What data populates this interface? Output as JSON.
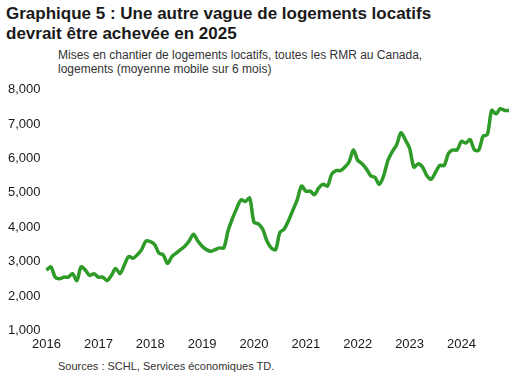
{
  "chart_data": {
    "type": "line",
    "title": "Graphique 5 : Une autre vague de logements locatifs devrait être achevée en 2025",
    "subtitle": "Mises en chantier de logements locatifs, toutes les RMR au Canada, logements (moyenne mobile sur 6 mois)",
    "source": "Sources : SCHL, Services économiques TD.",
    "categories": [
      "2016",
      null,
      null,
      null,
      null,
      null,
      null,
      null,
      null,
      null,
      null,
      null,
      "2017",
      null,
      null,
      null,
      null,
      null,
      null,
      null,
      null,
      null,
      null,
      null,
      "2018",
      null,
      null,
      null,
      null,
      null,
      null,
      null,
      null,
      null,
      null,
      null,
      "2019",
      null,
      null,
      null,
      null,
      null,
      null,
      null,
      null,
      null,
      null,
      null,
      "2020",
      null,
      null,
      null,
      null,
      null,
      null,
      null,
      null,
      null,
      null,
      null,
      "2021",
      null,
      null,
      null,
      null,
      null,
      null,
      null,
      null,
      null,
      null,
      null,
      "2022",
      null,
      null,
      null,
      null,
      null,
      null,
      null,
      null,
      null,
      null,
      null,
      "2023",
      null,
      null,
      null,
      null,
      null,
      null,
      null,
      null,
      null,
      null,
      null,
      "2024",
      null,
      null,
      null,
      null,
      null,
      null,
      null,
      null,
      null,
      null,
      null
    ],
    "values": [
      2750,
      2850,
      2550,
      2500,
      2550,
      2550,
      2650,
      2450,
      2850,
      2750,
      2600,
      2650,
      2550,
      2550,
      2450,
      2600,
      2800,
      2650,
      2900,
      3150,
      3100,
      3200,
      3350,
      3600,
      3580,
      3500,
      3250,
      3200,
      2950,
      3150,
      3250,
      3350,
      3450,
      3600,
      3800,
      3600,
      3450,
      3350,
      3300,
      3350,
      3400,
      3400,
      3900,
      4250,
      4550,
      4800,
      4750,
      4850,
      4150,
      4100,
      3950,
      3600,
      3400,
      3350,
      3850,
      3950,
      4200,
      4500,
      4800,
      5200,
      5050,
      5050,
      4950,
      5150,
      5250,
      5200,
      5550,
      5650,
      5650,
      5750,
      5900,
      6250,
      5950,
      5850,
      5700,
      5500,
      5450,
      5250,
      5500,
      5950,
      6200,
      6400,
      6750,
      6550,
      6300,
      5750,
      5850,
      5750,
      5500,
      5400,
      5600,
      5800,
      5800,
      6150,
      6250,
      6250,
      6500,
      6450,
      6550,
      6250,
      6250,
      6650,
      6700,
      7400,
      7300,
      7450,
      7400,
      7400
    ],
    "color": "#2e9a27",
    "ylim": [
      1000,
      8000
    ],
    "yticks": [
      {
        "value": 1000,
        "label": "1,000"
      },
      {
        "value": 2000,
        "label": "2,000"
      },
      {
        "value": 3000,
        "label": "3,000"
      },
      {
        "value": 4000,
        "label": "4,000"
      },
      {
        "value": 5000,
        "label": "5,000"
      },
      {
        "value": 6000,
        "label": "6,000"
      },
      {
        "value": 7000,
        "label": "7,000"
      },
      {
        "value": 8000,
        "label": "8,000"
      }
    ],
    "grid": false
  }
}
